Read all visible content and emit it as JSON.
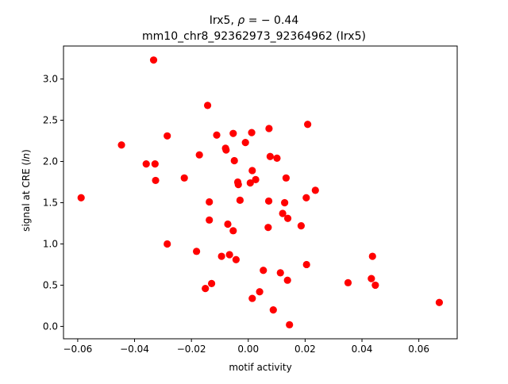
{
  "chart_data": {
    "type": "scatter",
    "title_line1_prefix": "Irx5, ",
    "title_line1_rho": "ρ",
    "title_line1_value": " = − 0.44",
    "title_line2": "mm10_chr8_92362973_92364962 (Irx5)",
    "xlabel": "motif activity",
    "ylabel_prefix": "signal at CRE (",
    "ylabel_italic": "ln",
    "ylabel_suffix": ")",
    "xlim": [
      -0.065,
      0.0735
    ],
    "ylim": [
      -0.15,
      3.4
    ],
    "x_ticks": [
      -0.06,
      -0.04,
      -0.02,
      0.0,
      0.02,
      0.04,
      0.06
    ],
    "x_tick_labels": [
      "−0.06",
      "−0.04",
      "−0.02",
      "0.00",
      "0.02",
      "0.04",
      "0.06"
    ],
    "y_ticks": [
      0.0,
      0.5,
      1.0,
      1.5,
      2.0,
      2.5,
      3.0
    ],
    "y_tick_labels": [
      "0.0",
      "0.5",
      "1.0",
      "1.5",
      "2.0",
      "2.5",
      "3.0"
    ],
    "grid": false,
    "marker_color": "#ff0000",
    "points": [
      {
        "x": -0.0588,
        "y": 1.56
      },
      {
        "x": -0.0446,
        "y": 2.2
      },
      {
        "x": -0.0359,
        "y": 1.97
      },
      {
        "x": -0.0333,
        "y": 3.23
      },
      {
        "x": -0.0328,
        "y": 1.97
      },
      {
        "x": -0.0326,
        "y": 1.77
      },
      {
        "x": -0.0285,
        "y": 2.31
      },
      {
        "x": -0.0285,
        "y": 1.0
      },
      {
        "x": -0.0225,
        "y": 1.8
      },
      {
        "x": -0.0182,
        "y": 0.91
      },
      {
        "x": -0.0172,
        "y": 2.08
      },
      {
        "x": -0.0151,
        "y": 0.46
      },
      {
        "x": -0.0143,
        "y": 2.68
      },
      {
        "x": -0.0137,
        "y": 1.51
      },
      {
        "x": -0.0137,
        "y": 1.29
      },
      {
        "x": -0.0129,
        "y": 0.52
      },
      {
        "x": -0.0111,
        "y": 2.32
      },
      {
        "x": -0.0094,
        "y": 0.85
      },
      {
        "x": -0.008,
        "y": 2.16
      },
      {
        "x": -0.0078,
        "y": 2.14
      },
      {
        "x": -0.0072,
        "y": 1.24
      },
      {
        "x": -0.0066,
        "y": 0.87
      },
      {
        "x": -0.0053,
        "y": 2.34
      },
      {
        "x": -0.0053,
        "y": 1.16
      },
      {
        "x": -0.0049,
        "y": 2.01
      },
      {
        "x": -0.0043,
        "y": 0.81
      },
      {
        "x": -0.0037,
        "y": 1.75
      },
      {
        "x": -0.0035,
        "y": 1.72
      },
      {
        "x": -0.0029,
        "y": 1.53
      },
      {
        "x": -0.001,
        "y": 2.23
      },
      {
        "x": 0.0007,
        "y": 1.74
      },
      {
        "x": 0.0012,
        "y": 2.35
      },
      {
        "x": 0.0014,
        "y": 1.89
      },
      {
        "x": 0.0014,
        "y": 0.34
      },
      {
        "x": 0.0026,
        "y": 1.78
      },
      {
        "x": 0.004,
        "y": 0.42
      },
      {
        "x": 0.0053,
        "y": 0.68
      },
      {
        "x": 0.007,
        "y": 1.2
      },
      {
        "x": 0.0072,
        "y": 1.52
      },
      {
        "x": 0.0073,
        "y": 2.4
      },
      {
        "x": 0.0077,
        "y": 2.06
      },
      {
        "x": 0.0088,
        "y": 0.2
      },
      {
        "x": 0.0101,
        "y": 2.04
      },
      {
        "x": 0.0113,
        "y": 0.65
      },
      {
        "x": 0.0121,
        "y": 1.37
      },
      {
        "x": 0.0128,
        "y": 1.5
      },
      {
        "x": 0.0133,
        "y": 1.8
      },
      {
        "x": 0.0138,
        "y": 0.56
      },
      {
        "x": 0.0139,
        "y": 1.31
      },
      {
        "x": 0.0145,
        "y": 0.02
      },
      {
        "x": 0.0186,
        "y": 1.22
      },
      {
        "x": 0.0204,
        "y": 1.56
      },
      {
        "x": 0.0205,
        "y": 0.75
      },
      {
        "x": 0.0209,
        "y": 2.45
      },
      {
        "x": 0.0236,
        "y": 1.65
      },
      {
        "x": 0.0351,
        "y": 0.53
      },
      {
        "x": 0.0433,
        "y": 0.58
      },
      {
        "x": 0.0437,
        "y": 0.85
      },
      {
        "x": 0.0447,
        "y": 0.5
      },
      {
        "x": 0.0672,
        "y": 0.29
      }
    ]
  }
}
